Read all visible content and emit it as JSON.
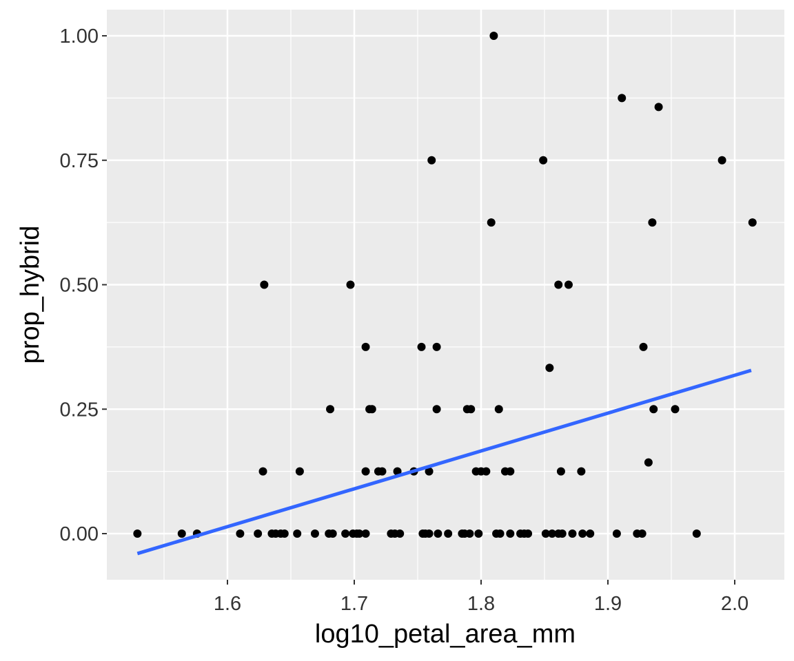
{
  "chart_data": {
    "type": "scatter",
    "title": "",
    "xlabel": "log10_petal_area_mm",
    "ylabel": "prop_hybrid",
    "xlim": [
      1.511,
      2.037
    ],
    "ylim": [
      -0.093,
      1.052
    ],
    "x_ticks": [
      1.6,
      1.7,
      1.8,
      1.9,
      2.0
    ],
    "x_tick_labels": [
      "1.6",
      "1.7",
      "1.8",
      "1.9",
      "2.0"
    ],
    "y_ticks": [
      0.0,
      0.25,
      0.5,
      0.75,
      1.0
    ],
    "y_tick_labels": [
      "0.00",
      "0.25",
      "0.50",
      "0.75",
      "1.00"
    ],
    "grid": true,
    "legend": "none",
    "panel_background": "#EBEBEB",
    "point_color": "#000000",
    "trend_line": {
      "type": "linear fit",
      "color": "#3366FF",
      "x": [
        1.529,
        2.013
      ],
      "y": [
        -0.04,
        0.328
      ]
    },
    "points": [
      {
        "x": 1.529,
        "y": 0.0
      },
      {
        "x": 1.564,
        "y": 0.0
      },
      {
        "x": 1.576,
        "y": 0.0
      },
      {
        "x": 1.61,
        "y": 0.0
      },
      {
        "x": 1.624,
        "y": 0.0
      },
      {
        "x": 1.635,
        "y": 0.0
      },
      {
        "x": 1.638,
        "y": 0.0
      },
      {
        "x": 1.642,
        "y": 0.0
      },
      {
        "x": 1.645,
        "y": 0.0
      },
      {
        "x": 1.655,
        "y": 0.0
      },
      {
        "x": 1.669,
        "y": 0.0
      },
      {
        "x": 1.68,
        "y": 0.0
      },
      {
        "x": 1.683,
        "y": 0.0
      },
      {
        "x": 1.693,
        "y": 0.0
      },
      {
        "x": 1.699,
        "y": 0.0
      },
      {
        "x": 1.702,
        "y": 0.0
      },
      {
        "x": 1.704,
        "y": 0.0
      },
      {
        "x": 1.709,
        "y": 0.0
      },
      {
        "x": 1.729,
        "y": 0.0
      },
      {
        "x": 1.732,
        "y": 0.0
      },
      {
        "x": 1.736,
        "y": 0.0
      },
      {
        "x": 1.754,
        "y": 0.0
      },
      {
        "x": 1.756,
        "y": 0.0
      },
      {
        "x": 1.759,
        "y": 0.0
      },
      {
        "x": 1.766,
        "y": 0.0
      },
      {
        "x": 1.774,
        "y": 0.0
      },
      {
        "x": 1.785,
        "y": 0.0
      },
      {
        "x": 1.787,
        "y": 0.0
      },
      {
        "x": 1.791,
        "y": 0.0
      },
      {
        "x": 1.798,
        "y": 0.0
      },
      {
        "x": 1.812,
        "y": 0.0
      },
      {
        "x": 1.815,
        "y": 0.0
      },
      {
        "x": 1.823,
        "y": 0.0
      },
      {
        "x": 1.831,
        "y": 0.0
      },
      {
        "x": 1.834,
        "y": 0.0
      },
      {
        "x": 1.837,
        "y": 0.0
      },
      {
        "x": 1.851,
        "y": 0.0
      },
      {
        "x": 1.856,
        "y": 0.0
      },
      {
        "x": 1.861,
        "y": 0.0
      },
      {
        "x": 1.864,
        "y": 0.0
      },
      {
        "x": 1.872,
        "y": 0.0
      },
      {
        "x": 1.88,
        "y": 0.0
      },
      {
        "x": 1.886,
        "y": 0.0
      },
      {
        "x": 1.907,
        "y": 0.0
      },
      {
        "x": 1.923,
        "y": 0.0
      },
      {
        "x": 1.927,
        "y": 0.0
      },
      {
        "x": 1.97,
        "y": 0.0
      },
      {
        "x": 1.628,
        "y": 0.125
      },
      {
        "x": 1.657,
        "y": 0.125
      },
      {
        "x": 1.709,
        "y": 0.125
      },
      {
        "x": 1.719,
        "y": 0.125
      },
      {
        "x": 1.722,
        "y": 0.125
      },
      {
        "x": 1.734,
        "y": 0.125
      },
      {
        "x": 1.747,
        "y": 0.125
      },
      {
        "x": 1.759,
        "y": 0.125
      },
      {
        "x": 1.796,
        "y": 0.125
      },
      {
        "x": 1.8,
        "y": 0.125
      },
      {
        "x": 1.804,
        "y": 0.125
      },
      {
        "x": 1.819,
        "y": 0.125
      },
      {
        "x": 1.823,
        "y": 0.125
      },
      {
        "x": 1.863,
        "y": 0.125
      },
      {
        "x": 1.879,
        "y": 0.125
      },
      {
        "x": 1.932,
        "y": 0.143
      },
      {
        "x": 1.681,
        "y": 0.25
      },
      {
        "x": 1.712,
        "y": 0.25
      },
      {
        "x": 1.714,
        "y": 0.25
      },
      {
        "x": 1.765,
        "y": 0.25
      },
      {
        "x": 1.789,
        "y": 0.25
      },
      {
        "x": 1.792,
        "y": 0.25
      },
      {
        "x": 1.814,
        "y": 0.25
      },
      {
        "x": 1.936,
        "y": 0.25
      },
      {
        "x": 1.953,
        "y": 0.25
      },
      {
        "x": 1.854,
        "y": 0.333
      },
      {
        "x": 1.709,
        "y": 0.375
      },
      {
        "x": 1.753,
        "y": 0.375
      },
      {
        "x": 1.765,
        "y": 0.375
      },
      {
        "x": 1.928,
        "y": 0.375
      },
      {
        "x": 1.629,
        "y": 0.5
      },
      {
        "x": 1.697,
        "y": 0.5
      },
      {
        "x": 1.861,
        "y": 0.5
      },
      {
        "x": 1.869,
        "y": 0.5
      },
      {
        "x": 1.808,
        "y": 0.625
      },
      {
        "x": 1.935,
        "y": 0.625
      },
      {
        "x": 2.014,
        "y": 0.625
      },
      {
        "x": 1.761,
        "y": 0.75
      },
      {
        "x": 1.849,
        "y": 0.75
      },
      {
        "x": 1.99,
        "y": 0.75
      },
      {
        "x": 1.94,
        "y": 0.857
      },
      {
        "x": 1.911,
        "y": 0.875
      },
      {
        "x": 1.81,
        "y": 1.0
      }
    ]
  }
}
